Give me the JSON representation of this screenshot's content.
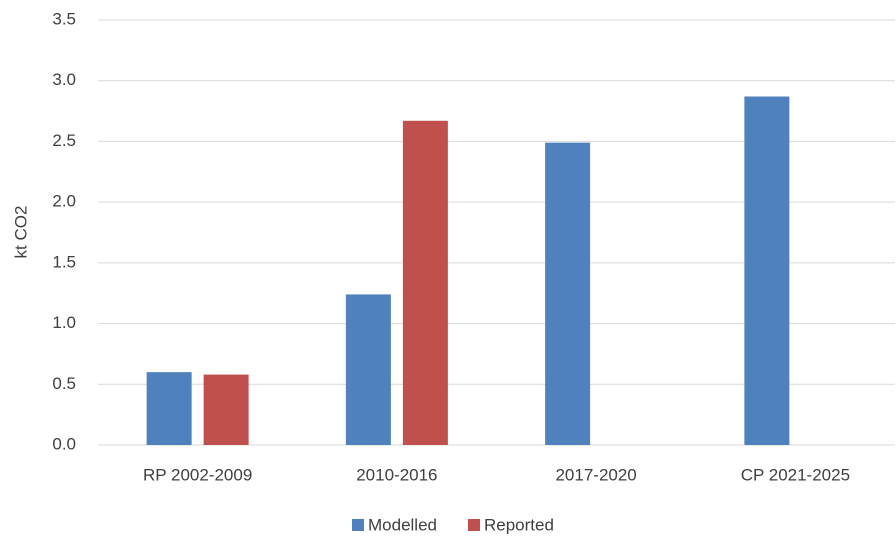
{
  "chart_data": {
    "type": "bar",
    "y_label": "kt CO2",
    "categories": [
      "RP 2002-2009",
      "2010-2016",
      "2017-2020",
      "CP 2021-2025"
    ],
    "series": [
      {
        "name": "Modelled",
        "color": "#4f81bd",
        "values": [
          0.6,
          1.24,
          2.49,
          2.87
        ]
      },
      {
        "name": "Reported",
        "color": "#c0504d",
        "values": [
          0.58,
          2.67,
          null,
          null
        ]
      }
    ],
    "ylim": [
      0,
      3.5
    ],
    "yticks": [
      {
        "value": 0,
        "label": "0.0"
      },
      0.5,
      {
        "value": 1,
        "label": "1.0"
      },
      1.5,
      {
        "value": 2,
        "label": "2.0"
      },
      2.5,
      {
        "value": 3,
        "label": "3.0"
      },
      3.5
    ],
    "grid": true
  }
}
